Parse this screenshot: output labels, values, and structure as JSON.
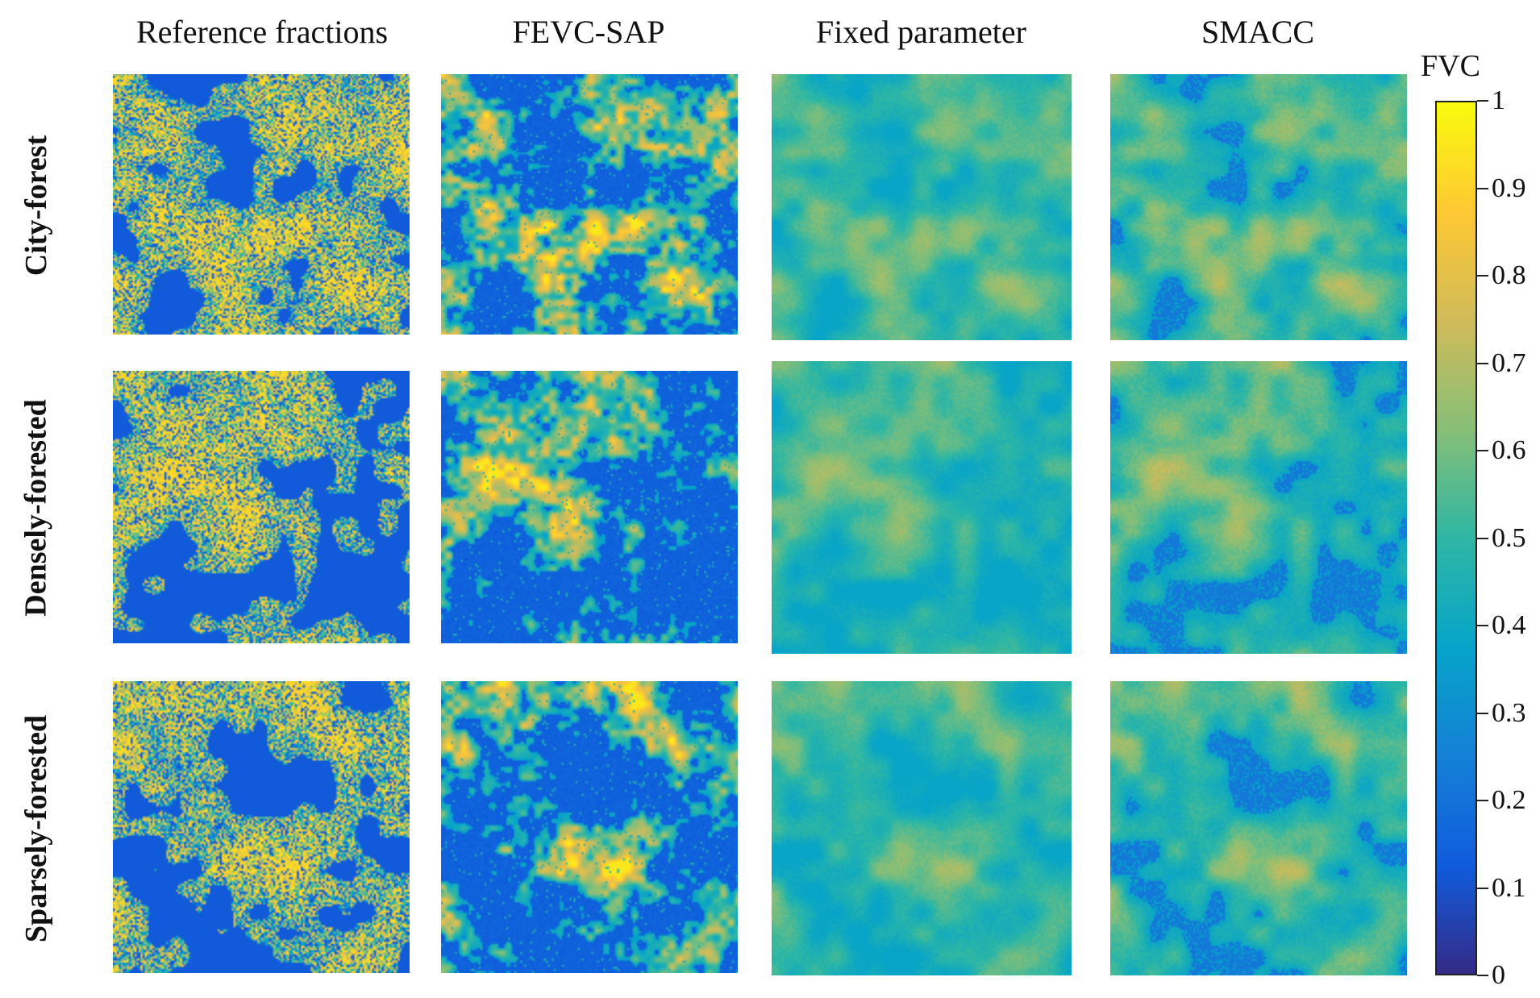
{
  "columns": [
    "Reference fractions",
    "FEVC-SAP",
    "Fixed parameter",
    "SMACC"
  ],
  "rows": [
    "City-forest",
    "Densely-forested",
    "Sparsely-forested"
  ],
  "colorbar": {
    "title": "FVC",
    "min": 0,
    "max": 1,
    "ticks": [
      "0",
      "0.1",
      "0.2",
      "0.3",
      "0.4",
      "0.5",
      "0.6",
      "0.7",
      "0.8",
      "0.9",
      "1"
    ],
    "colormap": "parula",
    "colors": [
      "#352a87",
      "#0f5cdd",
      "#1481d6",
      "#06a4ca",
      "#2eb7a4",
      "#87bf77",
      "#d1bb59",
      "#fec832",
      "#f9fb0e"
    ]
  },
  "panel_styles": {
    "Reference fractions": "noisy, full range",
    "FEVC-SAP": "blocky, full range",
    "Fixed parameter": "smooth, mid range",
    "SMACC": "smooth, mid range with dark patches"
  }
}
